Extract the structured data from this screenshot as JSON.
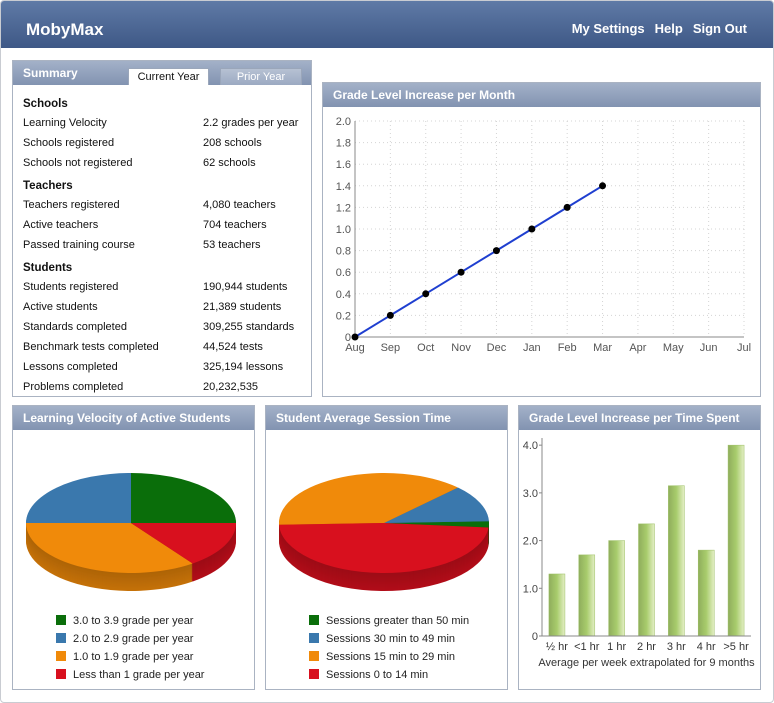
{
  "header": {
    "title": "MobyMax",
    "nav": [
      "My Settings",
      "Help",
      "Sign Out"
    ]
  },
  "summary": {
    "title": "Summary",
    "tabs": [
      "Current Year",
      "Prior Year"
    ],
    "sections": [
      {
        "heading": "Schools",
        "rows": [
          [
            "Learning Velocity",
            "2.2 grades per year"
          ],
          [
            "Schools registered",
            "208 schools"
          ],
          [
            "Schools not registered",
            "62 schools"
          ]
        ]
      },
      {
        "heading": "Teachers",
        "rows": [
          [
            "Teachers registered",
            "4,080 teachers"
          ],
          [
            "Active teachers",
            "704 teachers"
          ],
          [
            "Passed training course",
            "53 teachers"
          ]
        ]
      },
      {
        "heading": "Students",
        "rows": [
          [
            "Students registered",
            "190,944 students"
          ],
          [
            "Active students",
            "21,389 students"
          ],
          [
            "Standards completed",
            "309,255 standards"
          ],
          [
            "Benchmark tests completed",
            "44,524 tests"
          ],
          [
            "Lessons completed",
            "325,194 lessons"
          ],
          [
            "Problems completed",
            "20,232,535"
          ]
        ]
      }
    ]
  },
  "chart_data": [
    {
      "type": "line",
      "title": "Grade Level Increase per Month",
      "categories": [
        "Aug",
        "Sep",
        "Oct",
        "Nov",
        "Dec",
        "Jan",
        "Feb",
        "Mar",
        "Apr",
        "May",
        "Jun",
        "Jul"
      ],
      "values": [
        0,
        0.2,
        0.4,
        0.6,
        0.8,
        1.0,
        1.2,
        1.4,
        null,
        null,
        null,
        null
      ],
      "color": "#1f3fd0",
      "marker_color": "#000000",
      "ylim": [
        0,
        2.0
      ],
      "yticks": [
        0,
        0.2,
        0.4,
        0.6,
        0.8,
        {
          "value": 1.0,
          "label": "1.0"
        },
        1.2,
        1.4,
        1.6,
        1.8,
        {
          "value": 2.0,
          "label": "2.0"
        }
      ],
      "grid": true
    },
    {
      "type": "pie",
      "title": "Learning Velocity of Active Students",
      "categories": [
        "3.0 to 3.9 grade per year",
        "2.0 to 2.9 grade per year",
        "1.0 to 1.9 grade per year",
        "Less than 1 grade per year"
      ],
      "values": [
        25,
        25,
        35,
        15
      ],
      "colors": [
        "#0a6e0a",
        "#3a78ad",
        "#f08a0a",
        "#d8101e"
      ]
    },
    {
      "type": "pie",
      "title": "Student Average Session Time",
      "categories": [
        "Sessions greater than 50 min",
        "Sessions 30 min to 49 min",
        "Sessions 15 min to 29 min",
        "Sessions 0 to 14 min"
      ],
      "values": [
        2,
        12,
        38,
        48
      ],
      "colors": [
        "#0a6e0a",
        "#3a78ad",
        "#f08a0a",
        "#d8101e"
      ]
    },
    {
      "type": "bar",
      "title": "Grade Level Increase per Time Spent",
      "categories": [
        "½ hr",
        "<1 hr",
        "1 hr",
        "2 hr",
        "3 hr",
        "4 hr",
        ">5 hr"
      ],
      "values": [
        1.3,
        1.7,
        2.0,
        2.35,
        3.15,
        1.8,
        4.0
      ],
      "color": "#a8cc6c",
      "x_label": "Average per week extrapolated for 9 months",
      "ylim": [
        0,
        4.15
      ],
      "yticks": [
        0,
        {
          "value": 1.0,
          "label": "1.0"
        },
        {
          "value": 2.0,
          "label": "2.0"
        },
        {
          "value": 3.0,
          "label": "3.0"
        },
        {
          "value": 4.0,
          "label": "4.0"
        }
      ]
    }
  ]
}
